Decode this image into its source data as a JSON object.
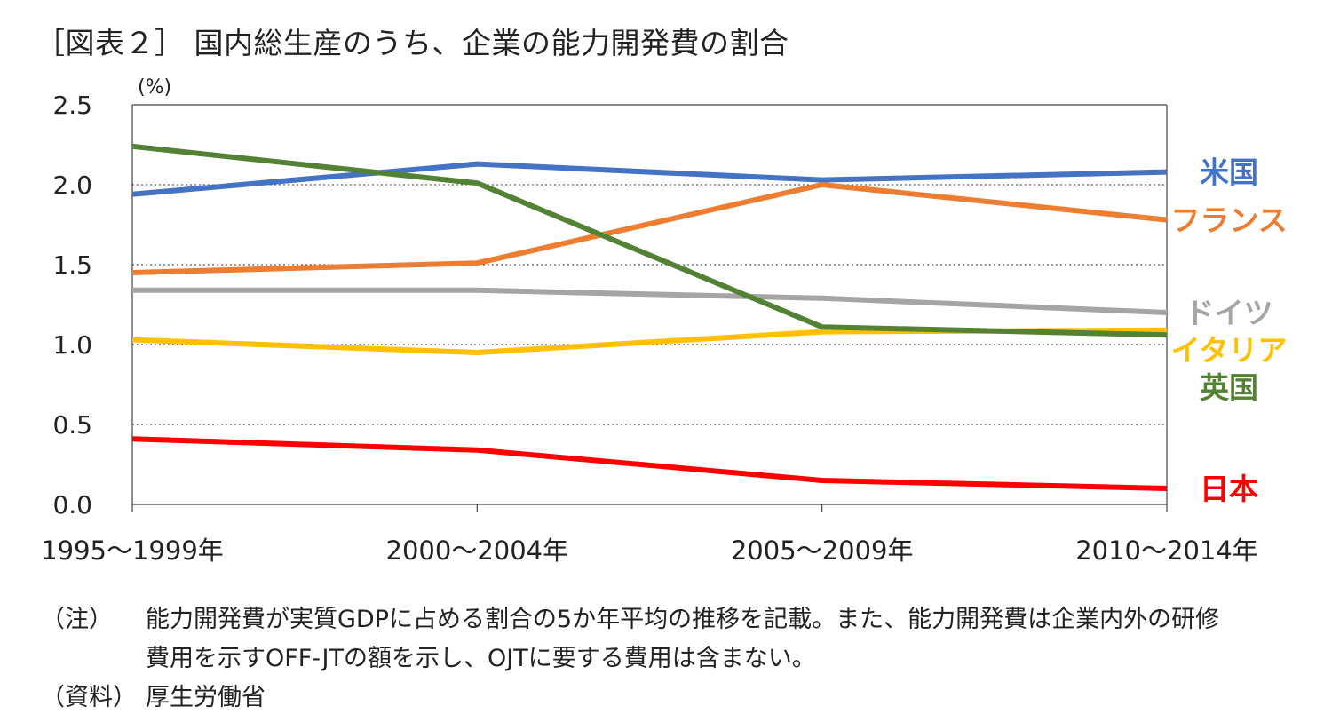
{
  "chart_data": {
    "type": "line",
    "title": "［図表２］ 国内総生産のうち、企業の能力開発費の割合",
    "ylabel": "(%)",
    "xlabel": "",
    "categories": [
      "1995～1999年",
      "2000～2004年",
      "2005～2009年",
      "2010～2014年"
    ],
    "ylim": [
      0,
      2.5
    ],
    "yticks": [
      "0.0",
      "0.5",
      "1.0",
      "1.5",
      "2.0",
      "2.5"
    ],
    "grid": "horizontal dotted",
    "series": [
      {
        "name": "米国",
        "color": "#4472C4",
        "values": [
          1.94,
          2.13,
          2.03,
          2.08
        ]
      },
      {
        "name": "フランス",
        "color": "#ED7D31",
        "values": [
          1.45,
          1.51,
          2.0,
          1.78
        ]
      },
      {
        "name": "ドイツ",
        "color": "#A5A5A5",
        "values": [
          1.34,
          1.34,
          1.29,
          1.2
        ]
      },
      {
        "name": "イタリア",
        "color": "#FFC000",
        "values": [
          1.03,
          0.95,
          1.08,
          1.09
        ]
      },
      {
        "name": "英国",
        "color": "#548235",
        "values": [
          2.24,
          2.01,
          1.11,
          1.06
        ]
      },
      {
        "name": "日本",
        "color": "#FF0000",
        "values": [
          0.41,
          0.34,
          0.15,
          0.1
        ]
      }
    ]
  },
  "notes": [
    {
      "key": "（注）",
      "text": "能力開発費が実質GDPに占める割合の5か年平均の推移を記載。また、能力開発費は企業内外の研修費用を示すOFF-JTの額を示し、OJTに要する費用は含まない。"
    },
    {
      "key": "（資料）",
      "text": "厚生労働省"
    }
  ]
}
